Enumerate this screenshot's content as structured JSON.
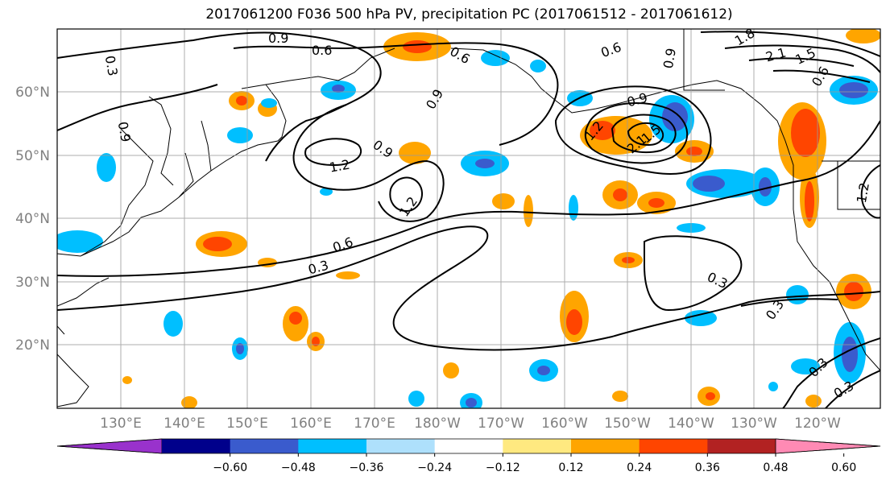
{
  "title": "2017061200 F036 500 hPa PV, precipitation PC (2017061512 - 2017061612)",
  "map": {
    "lon_labels": [
      "130°E",
      "140°E",
      "150°E",
      "160°E",
      "170°E",
      "180°W",
      "170°W",
      "160°W",
      "150°W",
      "140°W",
      "130°W",
      "120°W"
    ],
    "lat_labels": [
      "60°N",
      "50°N",
      "40°N",
      "30°N",
      "20°N"
    ],
    "pv_contour_labels": [
      "0.9",
      "0.6",
      "0.3",
      "0.9",
      "0.6",
      "0.9",
      "0.9",
      "1.2",
      "1.2",
      "0.6",
      "0.3",
      "0.6",
      "0.9",
      "1.5",
      "2.1",
      "1.2",
      "1.8",
      "2.1",
      "1.5",
      "0.6",
      "0.3",
      "0.3",
      "0.3",
      "0.3",
      "0.9",
      "1.2"
    ]
  },
  "colorbar": {
    "ticks": [
      "−0.60",
      "−0.48",
      "−0.36",
      "−0.24",
      "−0.12",
      "0.12",
      "0.24",
      "0.36",
      "0.48",
      "0.60"
    ],
    "colors": [
      "#9932cc",
      "#00008b",
      "#3a5bcd",
      "#00bfff",
      "#aee0fc",
      "#ffffff",
      "#ffe980",
      "#ffa500",
      "#ff4500",
      "#b22222",
      "#ff8ab4"
    ]
  }
}
